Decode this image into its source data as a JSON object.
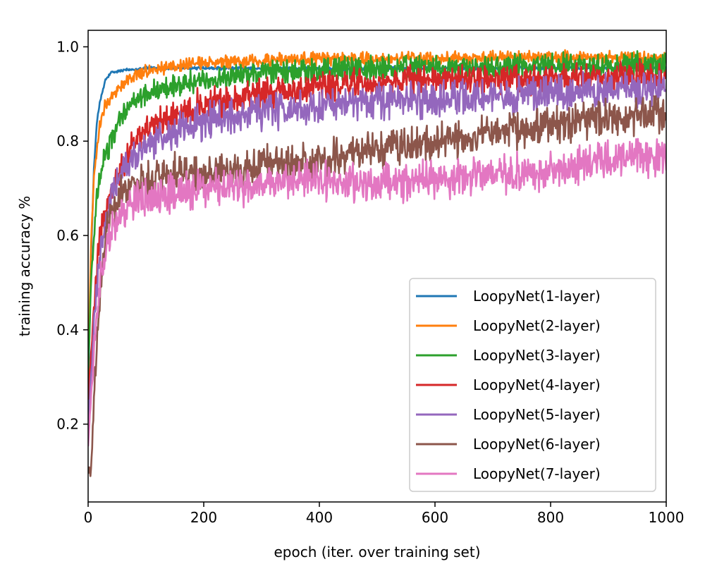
{
  "chart_data": {
    "type": "line",
    "title": "",
    "xlabel": "epoch (iter. over training set)",
    "ylabel": "training accuracy %",
    "xlim": [
      0,
      1000
    ],
    "ylim": [
      0.035,
      1.035
    ],
    "xticks": [
      0,
      200,
      400,
      600,
      800,
      1000
    ],
    "xtick_labels": [
      "0",
      "200",
      "400",
      "600",
      "800",
      "1000"
    ],
    "yticks": [
      0.2,
      0.4,
      0.6,
      0.8,
      1.0
    ],
    "ytick_labels": [
      "0.2",
      "0.4",
      "0.6",
      "0.8",
      "1.0"
    ],
    "grid": false,
    "legend_position": "lower-right",
    "series": [
      {
        "name": "LoopyNet(1-layer)",
        "color": "#1f77b4",
        "noise": 0.003,
        "points": [
          [
            0,
            0.25
          ],
          [
            5,
            0.55
          ],
          [
            10,
            0.74
          ],
          [
            15,
            0.84
          ],
          [
            20,
            0.88
          ],
          [
            30,
            0.93
          ],
          [
            40,
            0.945
          ],
          [
            60,
            0.95
          ],
          [
            100,
            0.955
          ],
          [
            200,
            0.955
          ],
          [
            400,
            0.953
          ],
          [
            600,
            0.955
          ],
          [
            800,
            0.955
          ],
          [
            1000,
            0.955
          ]
        ]
      },
      {
        "name": "LoopyNet(2-layer)",
        "color": "#ff7f0e",
        "noise": 0.012,
        "points": [
          [
            0,
            0.3
          ],
          [
            5,
            0.58
          ],
          [
            10,
            0.72
          ],
          [
            20,
            0.84
          ],
          [
            30,
            0.88
          ],
          [
            50,
            0.91
          ],
          [
            80,
            0.94
          ],
          [
            120,
            0.955
          ],
          [
            200,
            0.965
          ],
          [
            300,
            0.97
          ],
          [
            400,
            0.975
          ],
          [
            600,
            0.975
          ],
          [
            800,
            0.978
          ],
          [
            1000,
            0.978
          ]
        ]
      },
      {
        "name": "LoopyNet(3-layer)",
        "color": "#2ca02c",
        "noise": 0.022,
        "points": [
          [
            0,
            0.3
          ],
          [
            5,
            0.5
          ],
          [
            15,
            0.68
          ],
          [
            25,
            0.75
          ],
          [
            40,
            0.8
          ],
          [
            60,
            0.86
          ],
          [
            100,
            0.9
          ],
          [
            150,
            0.92
          ],
          [
            200,
            0.93
          ],
          [
            300,
            0.945
          ],
          [
            400,
            0.95
          ],
          [
            500,
            0.953
          ],
          [
            600,
            0.955
          ],
          [
            800,
            0.96
          ],
          [
            1000,
            0.963
          ]
        ]
      },
      {
        "name": "LoopyNet(4-layer)",
        "color": "#d62728",
        "noise": 0.028,
        "points": [
          [
            0,
            0.25
          ],
          [
            10,
            0.45
          ],
          [
            20,
            0.6
          ],
          [
            40,
            0.7
          ],
          [
            60,
            0.75
          ],
          [
            80,
            0.8
          ],
          [
            120,
            0.84
          ],
          [
            200,
            0.88
          ],
          [
            300,
            0.9
          ],
          [
            400,
            0.915
          ],
          [
            500,
            0.925
          ],
          [
            600,
            0.93
          ],
          [
            800,
            0.935
          ],
          [
            1000,
            0.94
          ]
        ]
      },
      {
        "name": "LoopyNet(5-layer)",
        "color": "#9467bd",
        "noise": 0.032,
        "points": [
          [
            0,
            0.2
          ],
          [
            10,
            0.4
          ],
          [
            20,
            0.55
          ],
          [
            40,
            0.68
          ],
          [
            60,
            0.74
          ],
          [
            100,
            0.79
          ],
          [
            150,
            0.82
          ],
          [
            200,
            0.84
          ],
          [
            300,
            0.86
          ],
          [
            400,
            0.875
          ],
          [
            500,
            0.885
          ],
          [
            600,
            0.89
          ],
          [
            800,
            0.9
          ],
          [
            1000,
            0.91
          ]
        ]
      },
      {
        "name": "LoopyNet(6-layer)",
        "color": "#8c564b",
        "noise": 0.035,
        "points": [
          [
            0,
            0.1
          ],
          [
            5,
            0.1
          ],
          [
            15,
            0.38
          ],
          [
            30,
            0.6
          ],
          [
            50,
            0.68
          ],
          [
            80,
            0.71
          ],
          [
            150,
            0.73
          ],
          [
            250,
            0.74
          ],
          [
            300,
            0.75
          ],
          [
            400,
            0.76
          ],
          [
            500,
            0.78
          ],
          [
            600,
            0.8
          ],
          [
            700,
            0.82
          ],
          [
            800,
            0.835
          ],
          [
            900,
            0.85
          ],
          [
            1000,
            0.86
          ]
        ]
      },
      {
        "name": "LoopyNet(7-layer)",
        "color": "#e377c2",
        "noise": 0.035,
        "points": [
          [
            0,
            0.15
          ],
          [
            10,
            0.35
          ],
          [
            20,
            0.5
          ],
          [
            40,
            0.62
          ],
          [
            60,
            0.66
          ],
          [
            100,
            0.68
          ],
          [
            200,
            0.7
          ],
          [
            300,
            0.71
          ],
          [
            400,
            0.72
          ],
          [
            500,
            0.71
          ],
          [
            600,
            0.72
          ],
          [
            700,
            0.73
          ],
          [
            800,
            0.74
          ],
          [
            900,
            0.76
          ],
          [
            1000,
            0.77
          ]
        ]
      }
    ]
  }
}
